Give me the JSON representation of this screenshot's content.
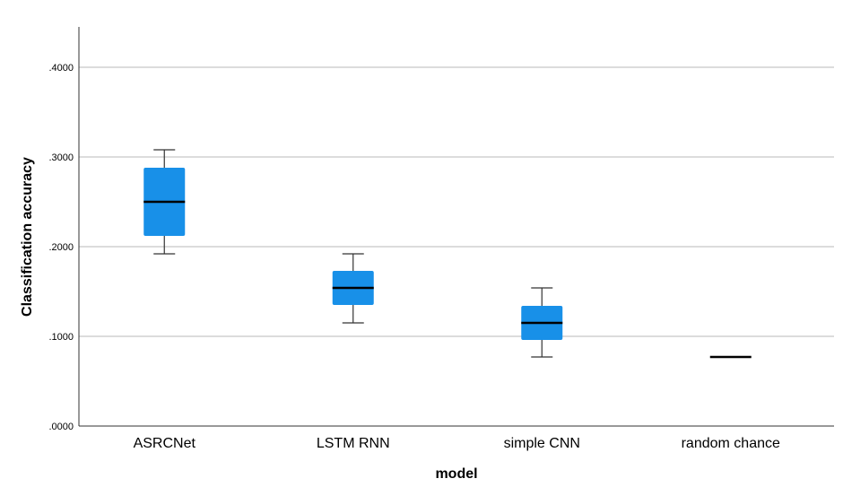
{
  "chart_data": {
    "type": "boxplot",
    "title": "",
    "xlabel": "model",
    "ylabel": "Classification accuracy",
    "ylim": [
      0,
      0.44
    ],
    "yticks": [
      0,
      0.1,
      0.2,
      0.3,
      0.4
    ],
    "ytick_labels": [
      ".0000",
      ".1000",
      ".2000",
      ".3000",
      ".4000"
    ],
    "grid": "horizontal",
    "box_color": "#1890e8",
    "categories": [
      "ASRCNet",
      "LSTM RNN",
      "simple CNN",
      "random chance"
    ],
    "boxes": [
      {
        "min": 0.192,
        "q1": 0.212,
        "median": 0.25,
        "q3": 0.288,
        "max": 0.308
      },
      {
        "min": 0.115,
        "q1": 0.135,
        "median": 0.154,
        "q3": 0.173,
        "max": 0.192
      },
      {
        "min": 0.077,
        "q1": 0.096,
        "median": 0.115,
        "q3": 0.134,
        "max": 0.154
      },
      {
        "min": 0.077,
        "q1": 0.077,
        "median": 0.077,
        "q3": 0.077,
        "max": 0.077
      }
    ]
  }
}
